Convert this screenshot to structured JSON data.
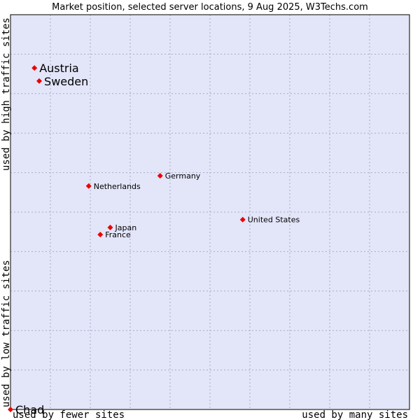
{
  "chart_data": {
    "type": "scatter",
    "title": "Market position, selected server locations, 9 Aug 2025, W3Techs.com",
    "xlabel_left": "used by fewer sites",
    "xlabel_right": "used by many sites",
    "ylabel_bottom": "used by low traffic sites",
    "ylabel_top": "used by high traffic sites",
    "xlim": [
      0,
      100
    ],
    "ylim": [
      0,
      100
    ],
    "grid": true,
    "colors": {
      "plot_background": "#e3e5f9",
      "grid": "#a9aac8",
      "point": "#ee0000",
      "frame": "#000000"
    },
    "points": [
      {
        "label": "Austria",
        "x": 6,
        "y": 86.5,
        "highlight": true
      },
      {
        "label": "Sweden",
        "x": 7.2,
        "y": 83.2,
        "highlight": true
      },
      {
        "label": "Germany",
        "x": 37.5,
        "y": 59.2,
        "highlight": false
      },
      {
        "label": "Netherlands",
        "x": 19.6,
        "y": 56.6,
        "highlight": false
      },
      {
        "label": "United States",
        "x": 58.2,
        "y": 48.1,
        "highlight": false
      },
      {
        "label": "Japan",
        "x": 25,
        "y": 46.1,
        "highlight": false
      },
      {
        "label": "France",
        "x": 22.5,
        "y": 44.3,
        "highlight": false
      },
      {
        "label": "Chad",
        "x": 0,
        "y": 0,
        "highlight": true,
        "muted": true
      }
    ]
  }
}
